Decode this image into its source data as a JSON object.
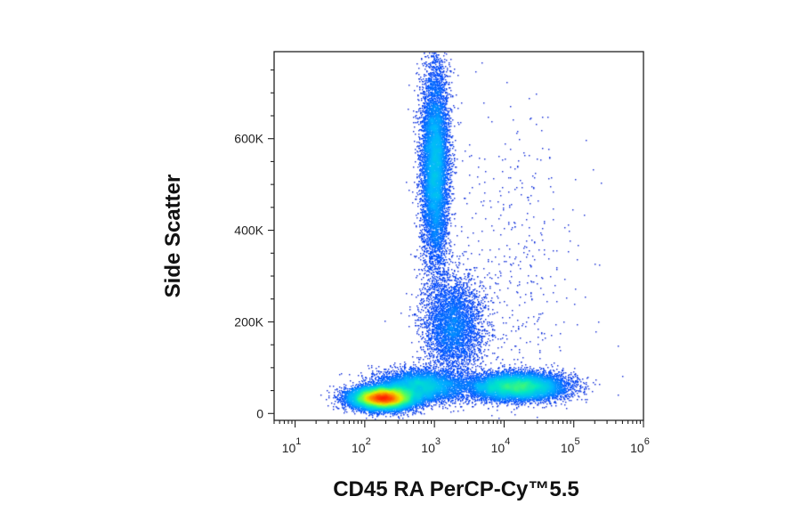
{
  "chart_data": {
    "type": "scatter",
    "title": "",
    "xlabel": "CD45 RA PerCP-Cy™5.5",
    "ylabel": "Side Scatter",
    "x_scale": "log",
    "xlim": [
      5,
      1000000
    ],
    "ylim": [
      -15000,
      790000
    ],
    "x_ticks": [
      {
        "value": 10,
        "base": "10",
        "exp": "1"
      },
      {
        "value": 100,
        "base": "10",
        "exp": "2"
      },
      {
        "value": 1000,
        "base": "10",
        "exp": "3"
      },
      {
        "value": 10000,
        "base": "10",
        "exp": "4"
      },
      {
        "value": 100000,
        "base": "10",
        "exp": "5"
      },
      {
        "value": 1000000,
        "base": "10",
        "exp": "6"
      }
    ],
    "y_ticks": [
      {
        "value": 0,
        "label": "0"
      },
      {
        "value": 200000,
        "label": "200K"
      },
      {
        "value": 400000,
        "label": "400K"
      },
      {
        "value": 600000,
        "label": "600K"
      }
    ],
    "grid": false,
    "legend": "none",
    "colormap": [
      "#0a14c8",
      "#0050ff",
      "#00b4ff",
      "#00e6c8",
      "#5aff5a",
      "#e6f000",
      "#ff8c00",
      "#ff1e00"
    ],
    "series": [
      {
        "population_center": [
          180,
          35000
        ],
        "spread_log10_x": 0.22,
        "spread_y": 12000,
        "relative_density": 1.0
      },
      {
        "population_center": [
          1000,
          540000
        ],
        "spread_log10_x": 0.1,
        "spread_y": 110000,
        "relative_density": 0.55
      },
      {
        "population_center": [
          15000,
          60000
        ],
        "spread_log10_x": 0.35,
        "spread_y": 15000,
        "relative_density": 0.6
      },
      {
        "population_center": [
          1800,
          190000
        ],
        "spread_log10_x": 0.22,
        "spread_y": 55000,
        "relative_density": 0.25
      },
      {
        "population_center": [
          600,
          60000
        ],
        "spread_log10_x": 0.3,
        "spread_y": 18000,
        "relative_density": 0.35
      },
      {
        "population_center": [
          15000,
          300000
        ],
        "spread_log10_x": 0.5,
        "spread_y": 180000,
        "relative_density": 0.03
      }
    ]
  }
}
